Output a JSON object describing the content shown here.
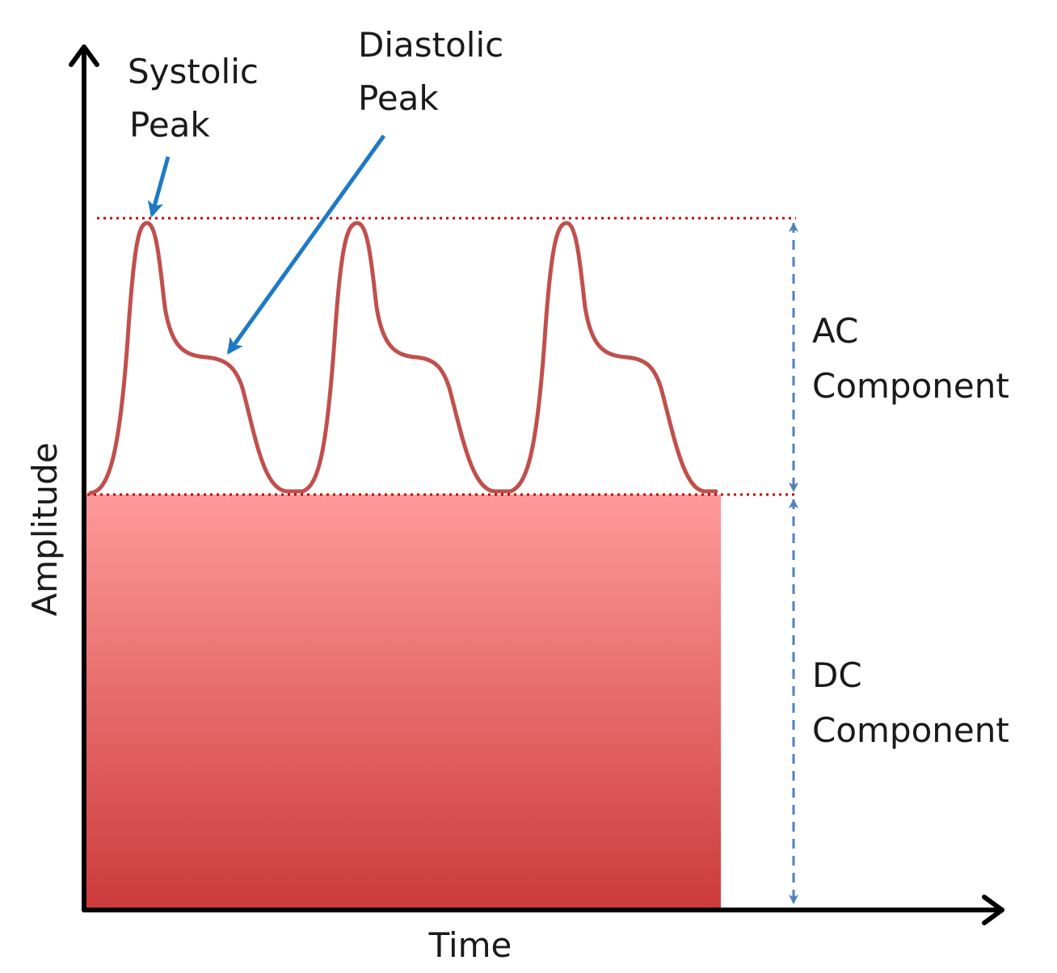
{
  "diagram": {
    "axes": {
      "x_label": "Time",
      "y_label": "Amplitude"
    },
    "annotations": {
      "systolic": [
        "Systolic",
        "Peak"
      ],
      "diastolic": [
        "Diastolic",
        "Peak"
      ],
      "ac_component": [
        "AC",
        "Component"
      ],
      "dc_component": [
        "DC",
        "Component"
      ]
    },
    "pulse_count": 3,
    "colors": {
      "waveform": "#c0504d",
      "dc_fill_top": "#ff9a9a",
      "dc_fill_bottom": "#cc3b3b",
      "reference_lines": "#c00000",
      "arrows": "#1f7ac4",
      "dimension_arrows": "#4f81bd",
      "axes": "#000000"
    }
  }
}
